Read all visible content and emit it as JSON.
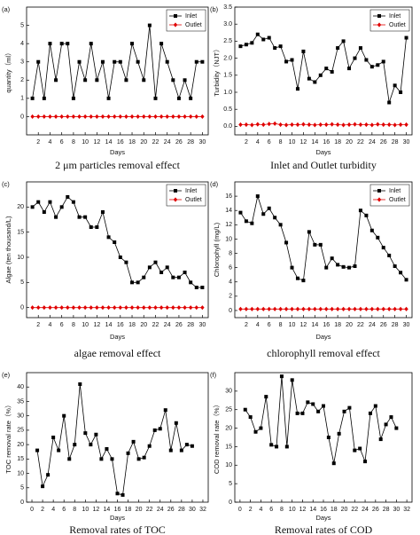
{
  "chart_data": [
    {
      "type": "line",
      "panel_label": "(a)",
      "caption": "2 μm particles removal effect",
      "xlabel": "Days",
      "ylabel": "quantity（ml）",
      "x": [
        1,
        2,
        3,
        4,
        5,
        6,
        7,
        8,
        9,
        10,
        11,
        12,
        13,
        14,
        15,
        16,
        17,
        18,
        19,
        20,
        21,
        22,
        23,
        24,
        25,
        26,
        27,
        28,
        29,
        30
      ],
      "xlim": [
        0,
        31
      ],
      "xticks": [
        2,
        4,
        6,
        8,
        10,
        12,
        14,
        16,
        18,
        20,
        22,
        24,
        26,
        28,
        30
      ],
      "ylim": [
        -1,
        6
      ],
      "yticks": [
        0,
        1,
        2,
        3,
        4,
        5
      ],
      "legend": "upper right",
      "series": [
        {
          "name": "Inlet",
          "color": "#000000",
          "marker": "square",
          "values": [
            1,
            3,
            1,
            4,
            2,
            4,
            4,
            1,
            3,
            2,
            4,
            2,
            3,
            1,
            3,
            3,
            2,
            4,
            3,
            2,
            5,
            1,
            4,
            3,
            2,
            1,
            2,
            1,
            3,
            3
          ]
        },
        {
          "name": "Outlet",
          "color": "#e00000",
          "marker": "diamond",
          "values": [
            0,
            0,
            0,
            0,
            0,
            0,
            0,
            0,
            0,
            0,
            0,
            0,
            0,
            0,
            0,
            0,
            0,
            0,
            0,
            0,
            0,
            0,
            0,
            0,
            0,
            0,
            0,
            0,
            0,
            0
          ]
        }
      ]
    },
    {
      "type": "line",
      "panel_label": "(b)",
      "caption": "Inlet and Outlet turbidity",
      "xlabel": "Days",
      "ylabel": "Turbidity（NJT）",
      "x": [
        1,
        2,
        3,
        4,
        5,
        6,
        7,
        8,
        9,
        10,
        11,
        12,
        13,
        14,
        15,
        16,
        17,
        18,
        19,
        20,
        21,
        22,
        23,
        24,
        25,
        26,
        27,
        28,
        29,
        30
      ],
      "xlim": [
        0,
        31
      ],
      "xticks": [
        2,
        4,
        6,
        8,
        10,
        12,
        14,
        16,
        18,
        20,
        22,
        24,
        26,
        28,
        30
      ],
      "ylim": [
        -0.25,
        3.5
      ],
      "yticks": [
        {
          "value": 0,
          "label": "0.0"
        },
        0.5,
        {
          "value": 1,
          "label": "1.0"
        },
        1.5,
        {
          "value": 2,
          "label": "2.0"
        },
        2.5,
        {
          "value": 3,
          "label": "3.0"
        },
        3.5
      ],
      "legend": "upper right",
      "series": [
        {
          "name": "Inlet",
          "color": "#000000",
          "marker": "square",
          "values": [
            2.35,
            2.4,
            2.45,
            2.7,
            2.55,
            2.6,
            2.3,
            2.35,
            1.9,
            1.95,
            1.1,
            2.2,
            1.4,
            1.3,
            1.5,
            1.7,
            1.6,
            2.3,
            2.5,
            1.7,
            2.0,
            2.3,
            1.95,
            1.75,
            1.8,
            1.9,
            0.7,
            1.2,
            1.0,
            2.6
          ]
        },
        {
          "name": "Outlet",
          "color": "#e00000",
          "marker": "diamond",
          "values": [
            0.05,
            0.05,
            0.04,
            0.06,
            0.05,
            0.07,
            0.08,
            0.05,
            0.04,
            0.05,
            0.05,
            0.06,
            0.05,
            0.04,
            0.05,
            0.05,
            0.06,
            0.05,
            0.04,
            0.05,
            0.06,
            0.05,
            0.05,
            0.04,
            0.06,
            0.05,
            0.05,
            0.04,
            0.05,
            0.05
          ]
        }
      ]
    },
    {
      "type": "line",
      "panel_label": "(c)",
      "caption": "algae removal effect",
      "xlabel": "Days",
      "ylabel": "Algae (ten thousand/L)",
      "x": [
        1,
        2,
        3,
        4,
        5,
        6,
        7,
        8,
        9,
        10,
        11,
        12,
        13,
        14,
        15,
        16,
        17,
        18,
        19,
        20,
        21,
        22,
        23,
        24,
        25,
        26,
        27,
        28,
        29,
        30
      ],
      "xlim": [
        0,
        31
      ],
      "xticks": [
        2,
        4,
        6,
        8,
        10,
        12,
        14,
        16,
        18,
        20,
        22,
        24,
        26,
        28,
        30
      ],
      "ylim": [
        -2,
        25
      ],
      "yticks": [
        0,
        5,
        10,
        15,
        20
      ],
      "legend": "upper right",
      "series": [
        {
          "name": "Inlet",
          "color": "#000000",
          "marker": "square",
          "values": [
            20,
            21,
            19,
            21,
            18,
            20,
            22,
            21,
            18,
            18,
            16,
            16,
            19,
            14,
            13,
            10,
            9,
            5,
            5,
            6,
            8,
            9,
            7,
            8,
            6,
            6,
            7,
            5,
            4,
            4
          ]
        },
        {
          "name": "Outlet",
          "color": "#e00000",
          "marker": "diamond",
          "values": [
            0,
            0,
            0,
            0,
            0,
            0,
            0,
            0,
            0,
            0,
            0,
            0,
            0,
            0,
            0,
            0,
            0,
            0,
            0,
            0,
            0,
            0,
            0,
            0,
            0,
            0,
            0,
            0,
            0,
            0
          ]
        }
      ]
    },
    {
      "type": "line",
      "panel_label": "(d)",
      "caption": "chlorophyll removal effect",
      "xlabel": "Days",
      "ylabel": "Chlorophyll (mg/L)",
      "x": [
        1,
        2,
        3,
        4,
        5,
        6,
        7,
        8,
        9,
        10,
        11,
        12,
        13,
        14,
        15,
        16,
        17,
        18,
        19,
        20,
        21,
        22,
        23,
        24,
        25,
        26,
        27,
        28,
        29,
        30
      ],
      "xlim": [
        0,
        31
      ],
      "xticks": [
        2,
        4,
        6,
        8,
        10,
        12,
        14,
        16,
        18,
        20,
        22,
        24,
        26,
        28,
        30
      ],
      "ylim": [
        -1,
        18
      ],
      "yticks": [
        0,
        2,
        4,
        6,
        8,
        10,
        12,
        14,
        16
      ],
      "legend": "upper right",
      "series": [
        {
          "name": "Inlet",
          "color": "#000000",
          "marker": "square",
          "values": [
            13.7,
            12.5,
            12.2,
            16.0,
            13.5,
            14.3,
            13.0,
            12.0,
            9.5,
            6.0,
            4.5,
            4.2,
            11.0,
            9.2,
            9.2,
            6.0,
            7.3,
            6.4,
            6.1,
            6.0,
            6.2,
            14.0,
            13.3,
            11.2,
            10.2,
            8.8,
            7.7,
            6.2,
            5.3,
            4.3
          ]
        },
        {
          "name": "Outlet",
          "color": "#e00000",
          "marker": "diamond",
          "values": [
            0.2,
            0.2,
            0.2,
            0.2,
            0.2,
            0.2,
            0.2,
            0.2,
            0.2,
            0.2,
            0.2,
            0.2,
            0.2,
            0.2,
            0.2,
            0.2,
            0.2,
            0.2,
            0.2,
            0.2,
            0.2,
            0.2,
            0.2,
            0.2,
            0.2,
            0.2,
            0.2,
            0.2,
            0.2,
            0.2
          ]
        }
      ]
    },
    {
      "type": "line",
      "panel_label": "(e)",
      "caption": "Removal rates of TOC",
      "xlabel": "Days",
      "ylabel": "TOC removal rate（%）",
      "x": [
        1,
        2,
        3,
        4,
        5,
        6,
        7,
        8,
        9,
        10,
        11,
        12,
        13,
        14,
        15,
        16,
        17,
        18,
        19,
        20,
        21,
        22,
        23,
        24,
        25,
        26,
        27,
        28,
        29,
        30
      ],
      "xlim": [
        -1,
        33
      ],
      "xticks": [
        0,
        2,
        4,
        6,
        8,
        10,
        12,
        14,
        16,
        18,
        20,
        22,
        24,
        26,
        28,
        30,
        32
      ],
      "ylim": [
        0,
        45
      ],
      "yticks": [
        0,
        5,
        10,
        15,
        20,
        25,
        30,
        35,
        40
      ],
      "series": [
        {
          "color": "#000000",
          "marker": "square",
          "values": [
            18,
            5.5,
            9.5,
            22.5,
            18,
            30,
            15,
            20,
            41,
            24,
            20,
            23.5,
            15,
            18.5,
            15,
            3,
            2.5,
            17,
            21,
            15,
            15.5,
            19.5,
            25,
            25.5,
            32,
            18,
            27.5,
            18,
            20,
            19.5
          ]
        }
      ]
    },
    {
      "type": "line",
      "panel_label": "(f)",
      "caption": "Removal rates of COD",
      "xlabel": "Days",
      "ylabel": "COD removal rate（%）",
      "x": [
        1,
        2,
        3,
        4,
        5,
        6,
        7,
        8,
        9,
        10,
        11,
        12,
        13,
        14,
        15,
        16,
        17,
        18,
        19,
        20,
        21,
        22,
        23,
        24,
        25,
        26,
        27,
        28,
        29,
        30
      ],
      "xlim": [
        -1,
        33
      ],
      "xticks": [
        0,
        2,
        4,
        6,
        8,
        10,
        12,
        14,
        16,
        18,
        20,
        22,
        24,
        26,
        28,
        30,
        32
      ],
      "ylim": [
        0,
        35
      ],
      "yticks": [
        0,
        5,
        10,
        15,
        20,
        25,
        30
      ],
      "series": [
        {
          "color": "#000000",
          "marker": "square",
          "values": [
            25,
            23,
            19,
            20,
            28.5,
            15.5,
            15,
            34,
            15,
            33,
            24,
            24,
            27,
            26.5,
            24.5,
            26,
            17.5,
            10.5,
            18.5,
            24.5,
            25.5,
            14,
            14.5,
            11,
            24,
            26,
            17,
            21,
            23,
            20
          ]
        }
      ]
    }
  ]
}
